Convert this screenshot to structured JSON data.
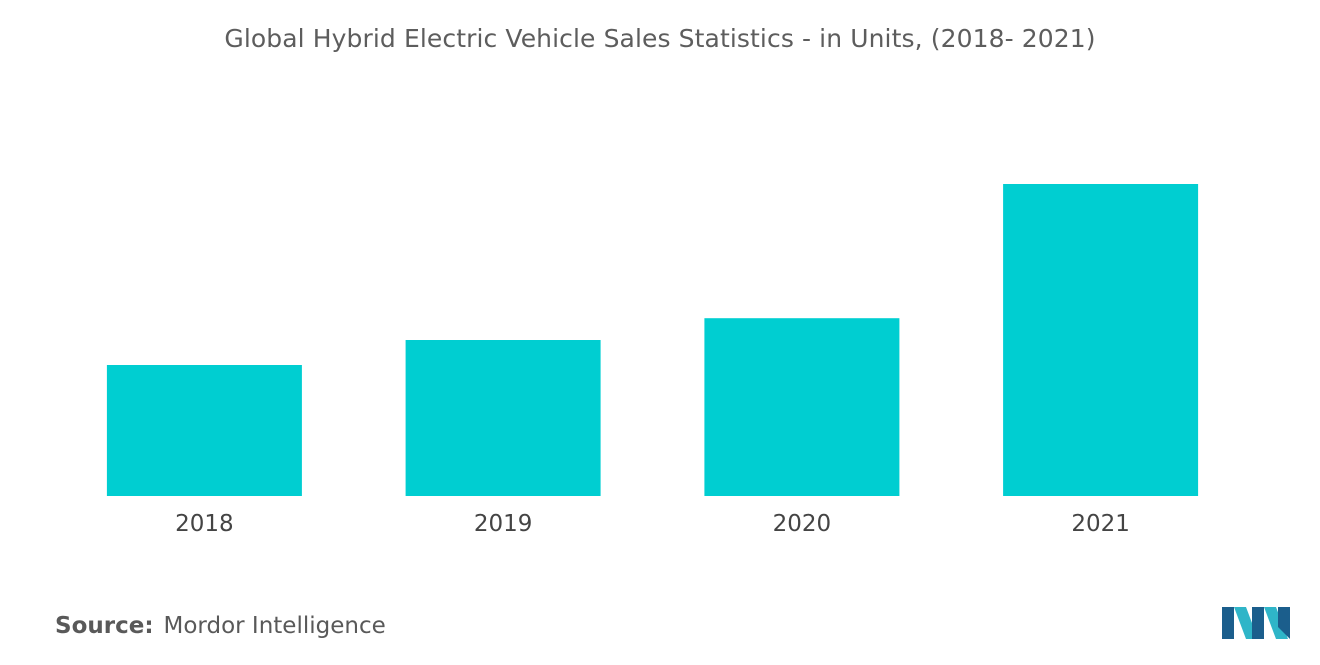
{
  "chart_data": {
    "type": "bar",
    "title": "Global Hybrid Electric Vehicle Sales Statistics - in Units, (2018- 2021)",
    "categories": [
      "2018",
      "2019",
      "2020",
      "2021"
    ],
    "values": [
      42,
      50,
      57,
      100
    ],
    "xlabel": "",
    "ylabel": "",
    "ylim": [
      0,
      100
    ],
    "grid": false,
    "legend": "none",
    "bar_color": "#00CED1"
  },
  "source": {
    "label": "Source:",
    "value": "Mordor Intelligence"
  },
  "logo": {
    "icon": "mordor-intelligence-logo-icon",
    "colors": [
      "#1b5e8c",
      "#2fb5c8"
    ]
  }
}
